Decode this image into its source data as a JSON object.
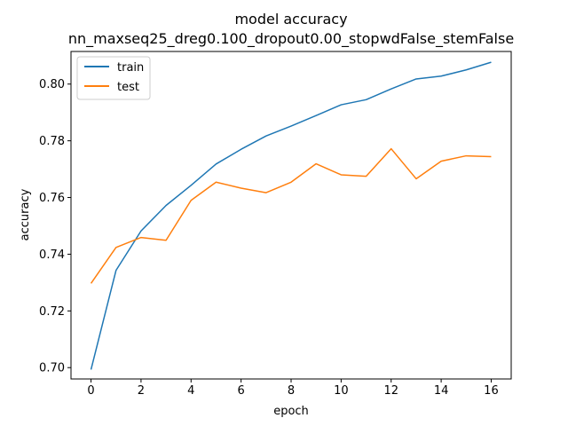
{
  "chart_data": {
    "type": "line",
    "title": "model accuracy",
    "subtitle": "nn_maxseq25_dreg0.100_dropout0.00_stopwdFalse_stemFalse",
    "xlabel": "epoch",
    "ylabel": "accuracy",
    "xlim": [
      -0.8,
      16.8
    ],
    "ylim": [
      0.696,
      0.8115
    ],
    "xticks": [
      0,
      2,
      4,
      6,
      8,
      10,
      12,
      14,
      16
    ],
    "yticks": [
      0.7,
      0.72,
      0.74,
      0.76,
      0.78,
      0.8
    ],
    "ytick_labels": [
      "0.70",
      "0.72",
      "0.74",
      "0.76",
      "0.78",
      "0.80"
    ],
    "grid": false,
    "legend_position": "upper left",
    "x": [
      0,
      1,
      2,
      3,
      4,
      5,
      6,
      7,
      8,
      9,
      10,
      11,
      12,
      13,
      14,
      15,
      16
    ],
    "series": [
      {
        "name": "train",
        "color": "#1f77b4",
        "values": [
          0.6993,
          0.7343,
          0.7482,
          0.7572,
          0.7643,
          0.7718,
          0.777,
          0.7817,
          0.7852,
          0.7889,
          0.7927,
          0.7945,
          0.7983,
          0.8018,
          0.8028,
          0.805,
          0.8077
        ]
      },
      {
        "name": "test",
        "color": "#ff7f0e",
        "values": [
          0.7297,
          0.7424,
          0.7459,
          0.7449,
          0.759,
          0.7654,
          0.7633,
          0.7617,
          0.7654,
          0.7719,
          0.768,
          0.7675,
          0.7772,
          0.7666,
          0.7728,
          0.7747,
          0.7744
        ]
      }
    ]
  }
}
